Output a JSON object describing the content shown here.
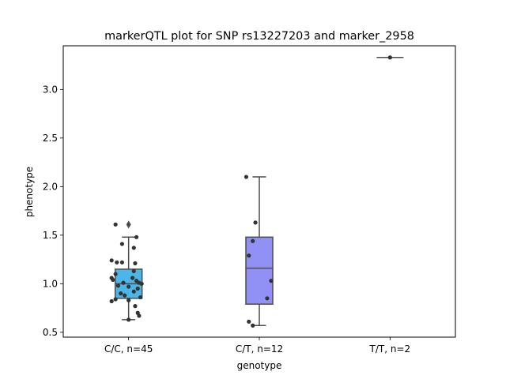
{
  "chart_data": {
    "type": "box",
    "title": "markerQTL plot for SNP rs13227203 and marker_2958",
    "xlabel": "genotype",
    "ylabel": "phenotype",
    "ylim": [
      0.45,
      3.45
    ],
    "yticks": [
      0.5,
      1.0,
      1.5,
      2.0,
      2.5,
      3.0
    ],
    "ytick_labels": [
      "0.5",
      "1.0",
      "1.5",
      "2.0",
      "2.5",
      "3.0"
    ],
    "grid": false,
    "legend": "none",
    "categories": [
      "C/C, n=45",
      "C/T, n=12",
      "T/T, n=2"
    ],
    "boxes": [
      {
        "category": "C/C, n=45",
        "color": "#4db6e8",
        "q1": 0.85,
        "median": 1.0,
        "q3": 1.15,
        "whisker_low": 0.63,
        "whisker_high": 1.48,
        "outliers": [
          1.61
        ]
      },
      {
        "category": "C/T, n=12",
        "color": "#9090f5",
        "q1": 0.79,
        "median": 1.16,
        "q3": 1.48,
        "whisker_low": 0.57,
        "whisker_high": 2.1,
        "outliers": []
      },
      {
        "category": "T/T, n=2",
        "color": "#d08cf2",
        "q1": 3.33,
        "median": 3.33,
        "q3": 3.33,
        "whisker_low": 3.33,
        "whisker_high": 3.33,
        "outliers": []
      }
    ],
    "points": [
      {
        "category": 0,
        "jitter": -0.1,
        "y": 1.61
      },
      {
        "category": 0,
        "jitter": 0.06,
        "y": 1.48
      },
      {
        "category": 0,
        "jitter": -0.05,
        "y": 1.41
      },
      {
        "category": 0,
        "jitter": 0.04,
        "y": 1.37
      },
      {
        "category": 0,
        "jitter": -0.13,
        "y": 1.24
      },
      {
        "category": 0,
        "jitter": -0.09,
        "y": 1.22
      },
      {
        "category": 0,
        "jitter": -0.05,
        "y": 1.22
      },
      {
        "category": 0,
        "jitter": 0.05,
        "y": 1.21
      },
      {
        "category": 0,
        "jitter": 0.04,
        "y": 1.13
      },
      {
        "category": 0,
        "jitter": -0.1,
        "y": 1.1
      },
      {
        "category": 0,
        "jitter": -0.13,
        "y": 1.06
      },
      {
        "category": 0,
        "jitter": -0.12,
        "y": 1.04
      },
      {
        "category": 0,
        "jitter": 0.03,
        "y": 1.06
      },
      {
        "category": 0,
        "jitter": 0.06,
        "y": 1.03
      },
      {
        "category": 0,
        "jitter": 0.08,
        "y": 1.01
      },
      {
        "category": 0,
        "jitter": -0.04,
        "y": 1.01
      },
      {
        "category": 0,
        "jitter": 0.1,
        "y": 1.0
      },
      {
        "category": 0,
        "jitter": -0.08,
        "y": 0.98
      },
      {
        "category": 0,
        "jitter": 0.0,
        "y": 0.97
      },
      {
        "category": 0,
        "jitter": 0.07,
        "y": 0.95
      },
      {
        "category": 0,
        "jitter": 0.04,
        "y": 0.92
      },
      {
        "category": 0,
        "jitter": -0.06,
        "y": 0.9
      },
      {
        "category": 0,
        "jitter": -0.03,
        "y": 0.88
      },
      {
        "category": 0,
        "jitter": 0.09,
        "y": 0.86
      },
      {
        "category": 0,
        "jitter": -0.1,
        "y": 0.84
      },
      {
        "category": 0,
        "jitter": 0.0,
        "y": 0.83
      },
      {
        "category": 0,
        "jitter": -0.13,
        "y": 0.82
      },
      {
        "category": 0,
        "jitter": 0.05,
        "y": 0.77
      },
      {
        "category": 0,
        "jitter": 0.07,
        "y": 0.7
      },
      {
        "category": 0,
        "jitter": 0.08,
        "y": 0.67
      },
      {
        "category": 0,
        "jitter": 0.0,
        "y": 0.63
      },
      {
        "category": 1,
        "jitter": -0.1,
        "y": 2.1
      },
      {
        "category": 1,
        "jitter": -0.03,
        "y": 1.63
      },
      {
        "category": 1,
        "jitter": -0.05,
        "y": 1.44
      },
      {
        "category": 1,
        "jitter": -0.08,
        "y": 1.29
      },
      {
        "category": 1,
        "jitter": 0.09,
        "y": 1.03
      },
      {
        "category": 1,
        "jitter": 0.06,
        "y": 0.85
      },
      {
        "category": 1,
        "jitter": -0.08,
        "y": 0.61
      },
      {
        "category": 1,
        "jitter": -0.05,
        "y": 0.57
      },
      {
        "category": 2,
        "jitter": 0.0,
        "y": 3.33
      }
    ]
  }
}
